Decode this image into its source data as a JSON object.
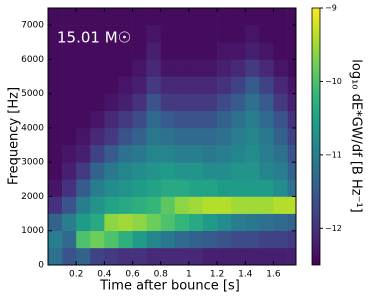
{
  "chart_data": {
    "type": "heatmap",
    "annotation": "15.01 M☉",
    "xlabel": "Time after bounce [s]",
    "ylabel": "Frequency [Hz]",
    "colorbar_label": "log₁₀ dE*GW/df [B Hz⁻¹]",
    "colormap": "viridis",
    "xbins": [
      0,
      0.1,
      0.2,
      0.3,
      0.4,
      0.5,
      0.6,
      0.7,
      0.8,
      0.9,
      1.0,
      1.1,
      1.2,
      1.3,
      1.4,
      1.5,
      1.6,
      1.7,
      1.76
    ],
    "ybins": [
      0,
      500,
      1000,
      1500,
      2000,
      2500,
      3000,
      3500,
      4000,
      4500,
      5000,
      5500,
      6000,
      6500,
      7000,
      7500
    ],
    "z": [
      [
        -11.2,
        -11.6,
        -11.4,
        -11.8,
        -11.9,
        -12.0,
        -12.0,
        -12.1,
        -12.1,
        -12.1,
        -12.1,
        -12.2,
        -12.2,
        -12.2,
        -12.2,
        -12.2,
        -12.2,
        -12.2
      ],
      [
        -11.0,
        -11.3,
        -10.0,
        -9.8,
        -10.0,
        -10.3,
        -10.6,
        -10.9,
        -11.1,
        -11.3,
        -11.4,
        -11.5,
        -11.6,
        -11.7,
        -11.7,
        -11.8,
        -11.8,
        -11.9
      ],
      [
        -11.4,
        -11.0,
        -10.6,
        -10.4,
        -9.6,
        -9.5,
        -9.6,
        -9.8,
        -10.0,
        -10.2,
        -10.4,
        -10.6,
        -10.8,
        -11.0,
        -11.1,
        -11.2,
        -11.3,
        -11.4
      ],
      [
        -12.0,
        -11.6,
        -11.0,
        -10.7,
        -10.5,
        -10.4,
        -10.3,
        -10.2,
        -9.9,
        -9.6,
        -9.5,
        -9.4,
        -9.4,
        -9.5,
        -9.5,
        -9.5,
        -9.4,
        -9.4
      ],
      [
        -12.3,
        -12.0,
        -11.5,
        -11.0,
        -10.8,
        -10.7,
        -10.6,
        -10.5,
        -10.4,
        -10.4,
        -10.5,
        -10.5,
        -10.6,
        -10.6,
        -10.6,
        -10.6,
        -10.8,
        -11.2
      ],
      [
        -12.4,
        -12.2,
        -11.9,
        -11.4,
        -11.1,
        -10.9,
        -10.8,
        -10.7,
        -10.6,
        -10.7,
        -10.7,
        -10.8,
        -10.8,
        -10.7,
        -10.7,
        -10.9,
        -11.0,
        -11.4
      ],
      [
        -12.4,
        -12.3,
        -12.2,
        -11.8,
        -11.5,
        -11.2,
        -11.1,
        -10.9,
        -10.9,
        -11.0,
        -11.0,
        -11.1,
        -11.0,
        -10.9,
        -10.8,
        -11.0,
        -11.2,
        -11.6
      ],
      [
        -12.4,
        -12.4,
        -12.3,
        -12.1,
        -11.9,
        -11.6,
        -11.4,
        -11.1,
        -11.2,
        -11.3,
        -11.3,
        -11.3,
        -11.2,
        -11.0,
        -10.9,
        -11.1,
        -11.4,
        -11.8
      ],
      [
        -12.4,
        -12.4,
        -12.4,
        -12.3,
        -12.1,
        -11.9,
        -11.7,
        -11.3,
        -11.5,
        -11.6,
        -11.6,
        -11.6,
        -11.4,
        -11.2,
        -11.0,
        -11.3,
        -11.6,
        -12.0
      ],
      [
        -12.4,
        -12.4,
        -12.4,
        -12.4,
        -12.3,
        -12.2,
        -12.0,
        -11.6,
        -11.9,
        -11.9,
        -11.9,
        -11.9,
        -11.7,
        -11.5,
        -11.2,
        -11.5,
        -11.9,
        -12.2
      ],
      [
        -12.4,
        -12.4,
        -12.4,
        -12.4,
        -12.4,
        -12.3,
        -12.2,
        -11.9,
        -12.1,
        -12.1,
        -12.1,
        -12.1,
        -12.0,
        -11.8,
        -11.5,
        -11.8,
        -12.1,
        -12.3
      ],
      [
        -12.4,
        -12.4,
        -12.4,
        -12.4,
        -12.4,
        -12.4,
        -12.3,
        -12.1,
        -12.3,
        -12.3,
        -12.3,
        -12.3,
        -12.2,
        -12.1,
        -11.9,
        -12.1,
        -12.3,
        -12.4
      ],
      [
        -12.4,
        -12.4,
        -12.4,
        -12.4,
        -12.4,
        -12.4,
        -12.4,
        -12.2,
        -12.4,
        -12.4,
        -12.4,
        -12.4,
        -12.3,
        -12.3,
        -12.2,
        -12.3,
        -12.4,
        -12.4
      ],
      [
        -12.4,
        -12.4,
        -12.4,
        -12.4,
        -12.4,
        -12.4,
        -12.4,
        -12.3,
        -12.4,
        -12.4,
        -12.4,
        -12.4,
        -12.4,
        -12.4,
        -12.3,
        -12.4,
        -12.4,
        -12.4
      ],
      [
        -12.4,
        -12.4,
        -12.4,
        -12.4,
        -12.4,
        -12.4,
        -12.4,
        -12.4,
        -12.4,
        -12.4,
        -12.4,
        -12.4,
        -12.4,
        -12.4,
        -12.4,
        -12.4,
        -12.4,
        -12.4
      ]
    ],
    "xlim": [
      0,
      1.76
    ],
    "xticks": [
      0.2,
      0.4,
      0.6,
      0.8,
      1.0,
      1.2,
      1.4,
      1.6
    ],
    "ylim": [
      0,
      7500
    ],
    "yticks": [
      0,
      1000,
      2000,
      3000,
      4000,
      5000,
      6000,
      7000
    ],
    "zlim": [
      -12.5,
      -9
    ],
    "zticks": [
      {
        "value": -9,
        "label": "−9"
      },
      {
        "value": -10,
        "label": "−10"
      },
      {
        "value": -11,
        "label": "−11"
      },
      {
        "value": -12,
        "label": "−12"
      }
    ]
  }
}
